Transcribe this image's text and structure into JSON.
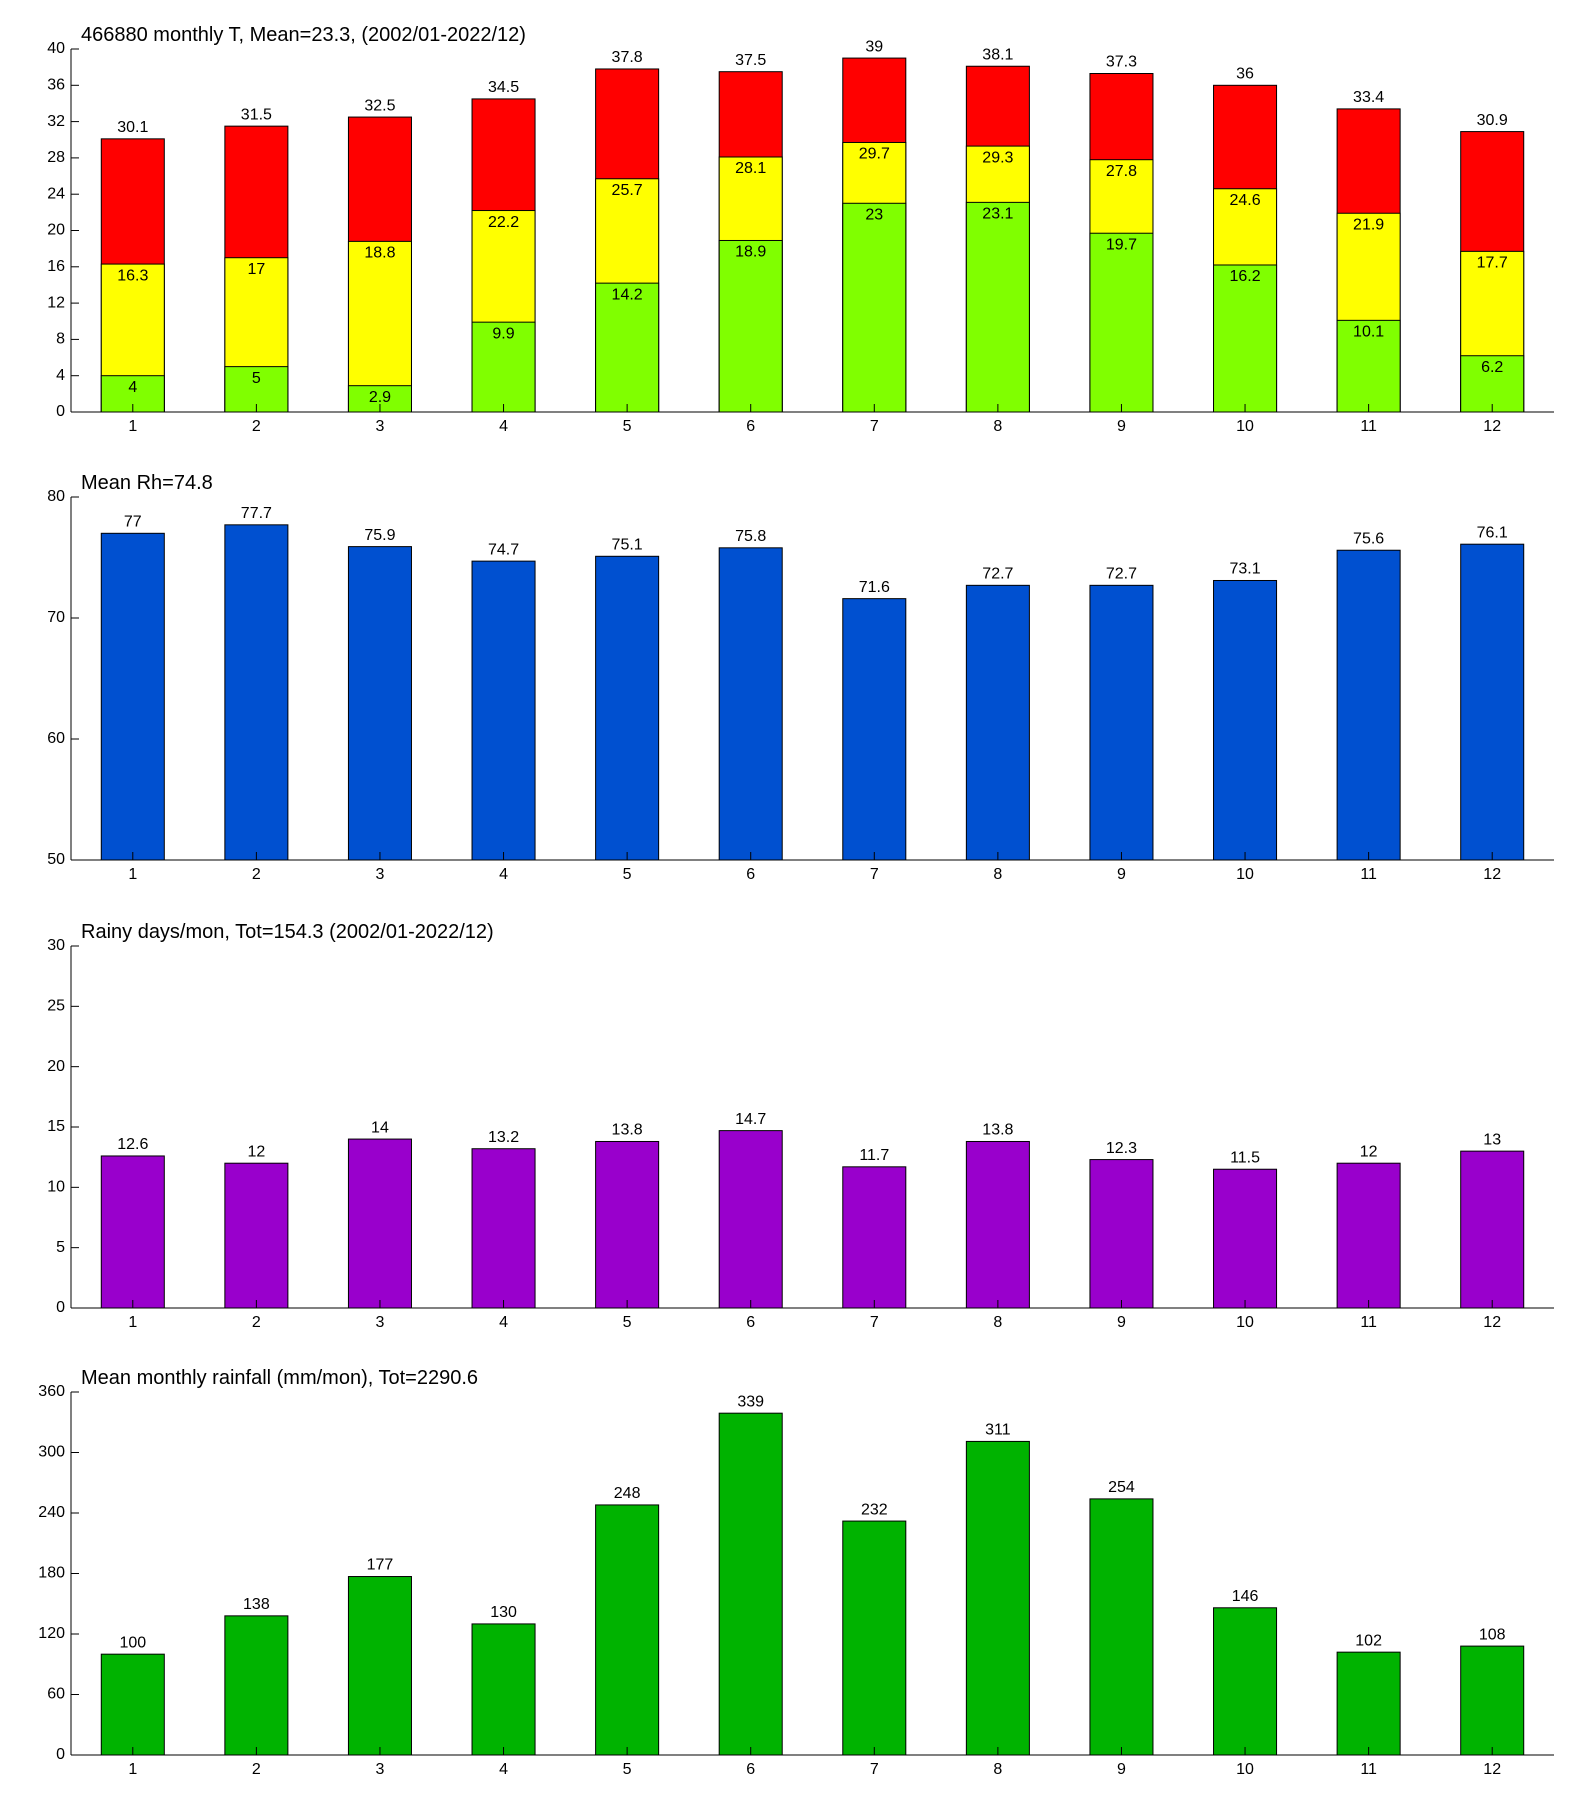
{
  "chart_data": [
    {
      "type": "bar",
      "title": "466880 monthly T, Mean=23.3, (2002/01-2022/12)",
      "categories": [
        1,
        2,
        3,
        4,
        5,
        6,
        7,
        8,
        9,
        10,
        11,
        12
      ],
      "barmode": "overlay",
      "series": [
        {
          "color": "#ff0000",
          "values": [
            30.1,
            31.5,
            32.5,
            34.5,
            37.8,
            37.5,
            39,
            38.1,
            37.3,
            36,
            33.4,
            30.9
          ]
        },
        {
          "color": "#ffff00",
          "values": [
            16.3,
            17,
            18.8,
            22.2,
            25.7,
            28.1,
            29.7,
            29.3,
            27.8,
            24.6,
            21.9,
            17.7
          ]
        },
        {
          "color": "#80ff00",
          "values": [
            4,
            5,
            2.9,
            9.9,
            14.2,
            18.9,
            23,
            23.1,
            19.7,
            16.2,
            10.1,
            6.2
          ]
        }
      ],
      "ylim": [
        0,
        40
      ],
      "yticks": [
        0,
        4,
        8,
        12,
        16,
        20,
        24,
        28,
        32,
        36,
        40
      ]
    },
    {
      "type": "bar",
      "title": "Mean Rh=74.8",
      "categories": [
        1,
        2,
        3,
        4,
        5,
        6,
        7,
        8,
        9,
        10,
        11,
        12
      ],
      "color": "#0050d0",
      "values": [
        77,
        77.7,
        75.9,
        74.7,
        75.1,
        75.8,
        71.6,
        72.7,
        72.7,
        73.1,
        75.6,
        76.1
      ],
      "ylim": [
        50,
        80
      ],
      "yticks": [
        50,
        60,
        70,
        80
      ]
    },
    {
      "type": "bar",
      "title": "Rainy days/mon, Tot=154.3 (2002/01-2022/12)",
      "categories": [
        1,
        2,
        3,
        4,
        5,
        6,
        7,
        8,
        9,
        10,
        11,
        12
      ],
      "color": "#9900cc",
      "values": [
        12.6,
        12,
        14,
        13.2,
        13.8,
        14.7,
        11.7,
        13.8,
        12.3,
        11.5,
        12,
        13
      ],
      "ylim": [
        0,
        30
      ],
      "yticks": [
        0,
        5,
        10,
        15,
        20,
        25,
        30
      ]
    },
    {
      "type": "bar",
      "title": "Mean monthly rainfall (mm/mon), Tot=2290.6",
      "categories": [
        1,
        2,
        3,
        4,
        5,
        6,
        7,
        8,
        9,
        10,
        11,
        12
      ],
      "color": "#00b300",
      "values": [
        100,
        138,
        177,
        130,
        248,
        339,
        232,
        311,
        254,
        146,
        102,
        108
      ],
      "ylim": [
        0,
        360
      ],
      "yticks": [
        0,
        60,
        120,
        180,
        240,
        300,
        360
      ]
    }
  ]
}
